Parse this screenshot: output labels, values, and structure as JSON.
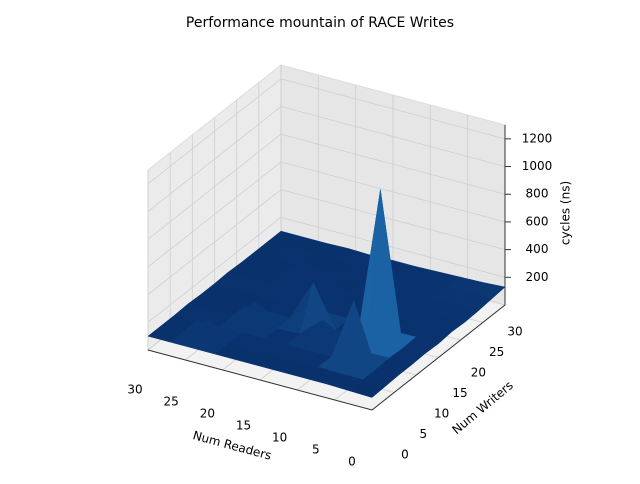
{
  "chart_data": {
    "type": "surface",
    "title": "Performance mountain of RACE Writes",
    "xlabel": "Num Readers",
    "ylabel": "Num Writers",
    "zlabel": "cycles (ns)",
    "x": [
      0,
      3,
      6,
      9,
      12,
      15,
      18,
      21,
      24,
      27,
      30
    ],
    "y": [
      0,
      3,
      6,
      9,
      12,
      15,
      18,
      21,
      24,
      27,
      30
    ],
    "z": [
      [
        90,
        95,
        100,
        100,
        105,
        100,
        110,
        105,
        110,
        120,
        130
      ],
      [
        95,
        100,
        100,
        105,
        100,
        105,
        110,
        110,
        115,
        140,
        120
      ],
      [
        100,
        100,
        550,
        100,
        1200,
        100,
        105,
        110,
        110,
        115,
        115
      ],
      [
        100,
        105,
        100,
        110,
        105,
        100,
        100,
        105,
        110,
        110,
        110
      ],
      [
        100,
        100,
        105,
        250,
        100,
        105,
        100,
        100,
        105,
        110,
        105
      ],
      [
        100,
        105,
        100,
        105,
        400,
        110,
        100,
        105,
        100,
        105,
        105
      ],
      [
        100,
        100,
        105,
        100,
        105,
        100,
        105,
        100,
        100,
        105,
        100
      ],
      [
        100,
        105,
        100,
        250,
        100,
        105,
        100,
        110,
        100,
        100,
        105
      ],
      [
        100,
        230,
        100,
        105,
        100,
        100,
        105,
        100,
        105,
        100,
        100
      ],
      [
        100,
        100,
        105,
        100,
        100,
        105,
        100,
        100,
        100,
        105,
        100
      ],
      [
        100,
        100,
        100,
        105,
        100,
        100,
        105,
        100,
        100,
        100,
        100
      ]
    ],
    "colormap": [
      "#08306b",
      "#2171b5",
      "#6baed6",
      "#f7fbff"
    ],
    "xlim": [
      0,
      30
    ],
    "ylim": [
      0,
      30
    ],
    "zlim": [
      0,
      1300
    ],
    "xticks": [
      0,
      5,
      10,
      15,
      20,
      25,
      30
    ],
    "yticks": [
      0,
      5,
      10,
      15,
      20,
      25,
      30
    ],
    "zticks": [
      200,
      400,
      600,
      800,
      1000,
      1200
    ],
    "grid": true
  }
}
